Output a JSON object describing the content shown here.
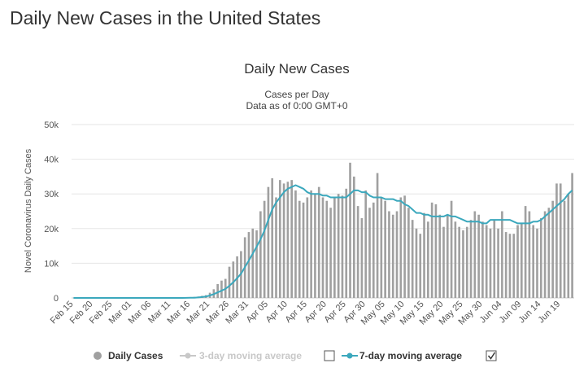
{
  "page": {
    "title": "Daily New Cases in the United States"
  },
  "colors": {
    "bar": "#a0a0a0",
    "line": "#3ba8bd",
    "legend_active": "#333333",
    "legend_inactive": "#c8c8c8"
  },
  "legend": [
    {
      "label": "Daily Cases",
      "icon": "circle-marker-icon",
      "state": "active",
      "checkbox": null
    },
    {
      "label": "3-day moving average",
      "icon": "line-marker-icon",
      "state": "inactive",
      "checkbox": false
    },
    {
      "label": "7-day moving average",
      "icon": "line-marker-icon",
      "state": "active",
      "checkbox": true
    }
  ],
  "chart_data": {
    "type": "bar",
    "title": "Daily New Cases",
    "subtitle": [
      "Cases per Day",
      "Data as of 0:00 GMT+0"
    ],
    "ylabel": "Novel Coronavirus Daily Cases",
    "ylim": [
      0,
      50000
    ],
    "yticks": [
      0,
      10000,
      20000,
      30000,
      40000,
      50000
    ],
    "ytick_labels": [
      "0",
      "10k",
      "20k",
      "30k",
      "40k",
      "50k"
    ],
    "x_start": "Feb 15",
    "x_end": "Jun 22",
    "xtick_labels": [
      "Feb 15",
      "Feb 20",
      "Feb 25",
      "Mar 01",
      "Mar 06",
      "Mar 11",
      "Mar 16",
      "Mar 21",
      "Mar 26",
      "Mar 31",
      "Apr 05",
      "Apr 10",
      "Apr 15",
      "Apr 20",
      "Apr 25",
      "Apr 30",
      "May 05",
      "May 10",
      "May 15",
      "May 20",
      "May 25",
      "May 30",
      "Jun 04",
      "Jun 09",
      "Jun 14",
      "Jun 19"
    ],
    "grid": true,
    "legend_position": "bottom",
    "series": [
      {
        "name": "Daily Cases",
        "type": "bar",
        "values": [
          0,
          0,
          0,
          0,
          0,
          0,
          0,
          0,
          0,
          0,
          0,
          0,
          0,
          0,
          0,
          0,
          0,
          0,
          0,
          0,
          0,
          0,
          0,
          0,
          0,
          0,
          0,
          0,
          0,
          100,
          200,
          300,
          400,
          600,
          800,
          1500,
          2500,
          4000,
          5000,
          5500,
          9000,
          10500,
          12000,
          13500,
          17500,
          19000,
          20000,
          19500,
          25000,
          28000,
          32000,
          34500,
          29000,
          34000,
          33000,
          33500,
          34000,
          31000,
          28000,
          27500,
          29000,
          31000,
          30000,
          32000,
          29000,
          28000,
          26000,
          29000,
          30000,
          29500,
          31500,
          39000,
          35000,
          26500,
          23000,
          31000,
          26000,
          27500,
          36000,
          29000,
          28000,
          25000,
          24000,
          25000,
          29000,
          29500,
          26000,
          22500,
          20000,
          18500,
          24500,
          22000,
          27500,
          27000,
          24000,
          20500,
          24000,
          28000,
          22000,
          20500,
          19500,
          20500,
          22500,
          25000,
          24000,
          22000,
          21000,
          20000,
          22500,
          20000,
          25000,
          19000,
          18500,
          18500,
          21000,
          21500,
          26500,
          25000,
          21000,
          20000,
          23000,
          25000,
          26000,
          28000,
          33000,
          33000,
          28000,
          30000,
          36000
        ]
      },
      {
        "name": "7-day moving average",
        "type": "line",
        "values": [
          0,
          0,
          0,
          0,
          0,
          0,
          0,
          0,
          0,
          0,
          0,
          0,
          0,
          0,
          0,
          0,
          0,
          0,
          0,
          0,
          0,
          0,
          0,
          0,
          0,
          0,
          0,
          0,
          0,
          15,
          40,
          80,
          150,
          250,
          400,
          700,
          1100,
          1600,
          2100,
          2600,
          3500,
          4500,
          5700,
          7000,
          8900,
          10800,
          12800,
          14800,
          16900,
          19400,
          22500,
          25500,
          27500,
          29000,
          30500,
          31500,
          32000,
          32500,
          32000,
          31500,
          30500,
          30000,
          30000,
          30000,
          29500,
          29500,
          29000,
          29000,
          29000,
          29000,
          29000,
          30000,
          31000,
          31000,
          30500,
          30500,
          29500,
          29000,
          29000,
          29000,
          28500,
          28500,
          28500,
          28000,
          28000,
          27000,
          26500,
          25500,
          24500,
          24500,
          24000,
          24000,
          23500,
          23500,
          23500,
          23500,
          24000,
          23500,
          23500,
          23000,
          22500,
          22000,
          22000,
          22000,
          22000,
          21500,
          21500,
          22500,
          22500,
          22500,
          22500,
          22500,
          22500,
          22000,
          21500,
          21500,
          21500,
          21500,
          22000,
          22000,
          22500,
          23500,
          24500,
          25500,
          26500,
          27500,
          28500,
          30000,
          31000
        ]
      }
    ]
  }
}
